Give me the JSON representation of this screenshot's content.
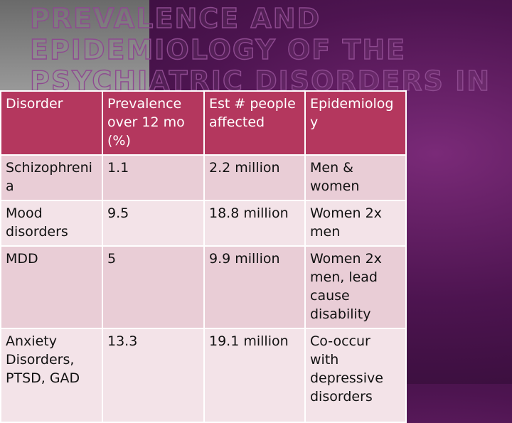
{
  "title": "PREVALENCE AND EPIDEMIOLOGY OF THE PSYCHIATRIC DISORDERS IN USA",
  "table": {
    "header": [
      "Disorder",
      "Prevalence over 12 mo (%)",
      "Est # people affected",
      "Epidemiology"
    ],
    "rows": [
      [
        "Schizophrenia",
        "1.1",
        "2.2 million",
        "Men & women"
      ],
      [
        "Mood disorders",
        "9.5",
        "18.8 million",
        "Women 2x men"
      ],
      [
        "MDD",
        "5",
        "9.9 million",
        "Women 2x men, lead cause disability"
      ],
      [
        "Anxiety Disorders, PTSD, GAD",
        "13.3",
        "19.1 million",
        "Co-occur with depressive disorders"
      ]
    ]
  }
}
